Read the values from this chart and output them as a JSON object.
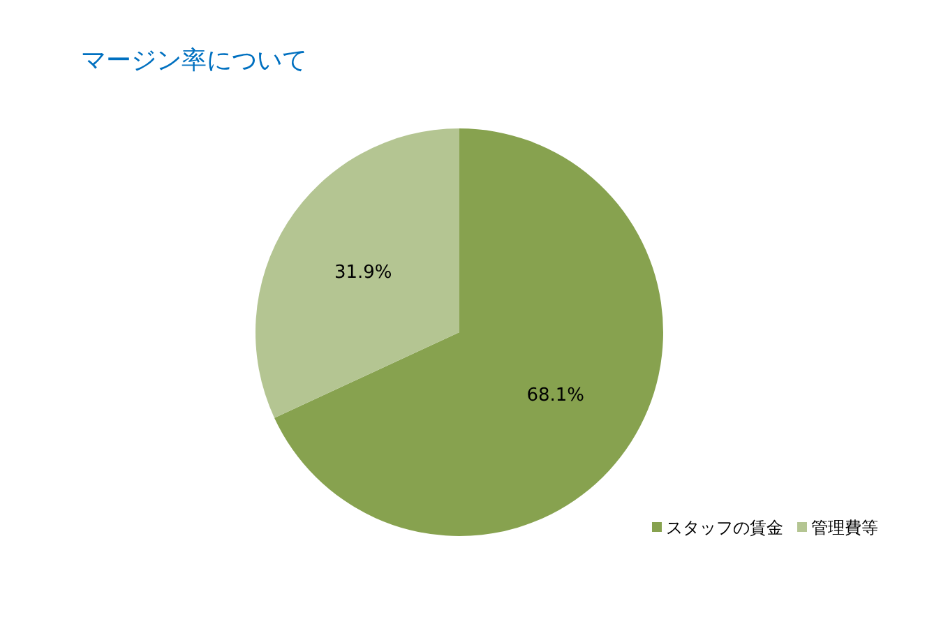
{
  "chart_data": {
    "type": "pie",
    "title": "マージン率について",
    "categories": [
      "スタッフの賃金",
      "管理費等"
    ],
    "values": [
      68.1,
      31.9
    ],
    "colors": [
      "#87a24f",
      "#b4c592"
    ],
    "value_labels": [
      "68.1%",
      "31.9%"
    ],
    "legend": "bottom right"
  }
}
